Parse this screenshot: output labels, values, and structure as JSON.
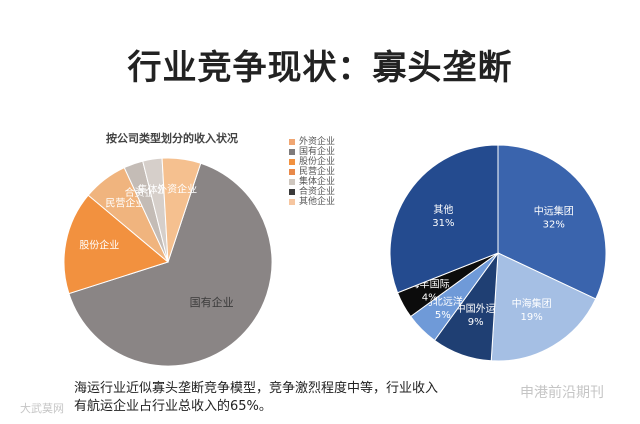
{
  "page": {
    "title": "行业竞争现状：寡头垄断",
    "caption_line1": "海运行业近似寡头垄断竞争模型，竞争激烈程度中等，行业",
    "caption_line1_rest": "收入",
    "caption_line2": "有航运企业占行业总收入的65%。",
    "watermark_left": "大武莫网",
    "watermark_right": "申港前沿期刊"
  },
  "colors": {
    "gray": "#8a8585",
    "orange": "#f2913f",
    "light_gray": "#c9c5c2",
    "navy": "#2f5597",
    "light_blue": "#a7c0e3",
    "mid_blue": "#4a7cc6",
    "dark_navy": "#1f3f73",
    "black": "#0c0c0c",
    "blue_mid2": "#5b8bd5"
  },
  "chart_data": [
    {
      "type": "pie",
      "title": "按公司类型划分的收入状况",
      "legend": [
        "外资企业",
        "国有企业",
        "股份企业",
        "民营企业",
        "集体企业",
        "合资企业",
        "其他企业"
      ],
      "legend_colors": [
        "#f0a672",
        "#7f7b7b",
        "#f2913f",
        "#e8894a",
        "#cfc7bf",
        "#3a3a3a",
        "#f6c6a0"
      ],
      "slices": [
        {
          "name": "国有企业",
          "value": 65,
          "color": "#8a8585"
        },
        {
          "name": "股份企业",
          "value": 16,
          "color": "#f2913f"
        },
        {
          "name": "民营企业",
          "value": 7,
          "color": "#f0b47e"
        },
        {
          "name": "合资企业",
          "value": 3,
          "color": "#c4bcb6"
        },
        {
          "name": "集体企业",
          "value": 3,
          "color": "#d6cfca"
        },
        {
          "name": "外资企业",
          "value": 6,
          "color": "#f5c08f"
        }
      ]
    },
    {
      "type": "pie",
      "slices": [
        {
          "name": "中远集团",
          "value": 32,
          "label": "32%",
          "color": "#3a64ad"
        },
        {
          "name": "中海集团",
          "value": 19,
          "label": "19%",
          "color": "#a5bfe4"
        },
        {
          "name": "中国外运",
          "value": 9,
          "label": "9%",
          "color": "#1f3f73"
        },
        {
          "name": "河北远洋",
          "value": 5,
          "label": "5%",
          "color": "#6f9ad8"
        },
        {
          "name": "海丰国际",
          "value": 4,
          "label": "4%",
          "color": "#0c0c0c"
        },
        {
          "name": "其他",
          "value": 31,
          "label": "31%",
          "color": "#244b8f"
        }
      ]
    }
  ]
}
